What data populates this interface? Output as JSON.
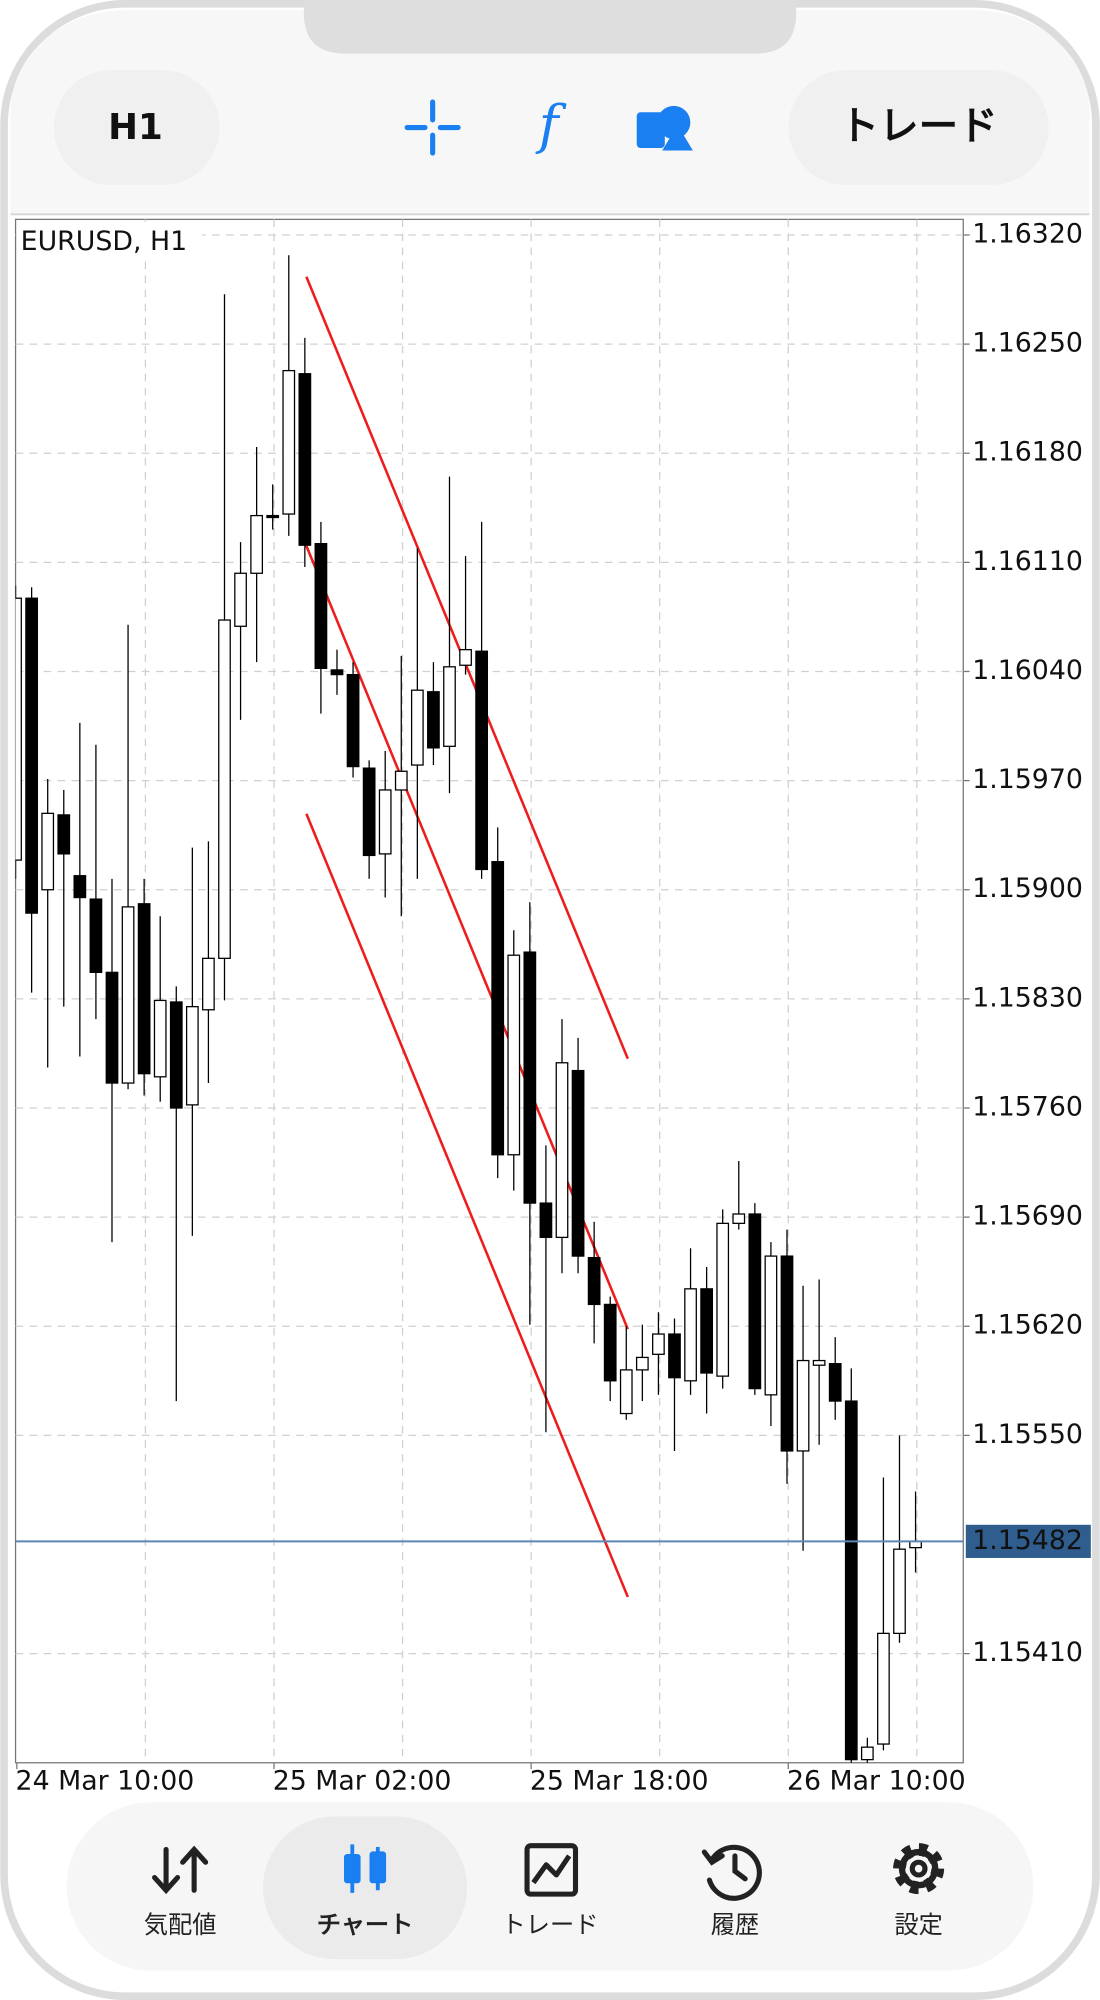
{
  "toolbar": {
    "timeframe": "H1",
    "trade": "トレード"
  },
  "chart_data": {
    "type": "candlestick",
    "title": "EURUSD, H1",
    "categories": [
      "24 Mar 10:00",
      null,
      null,
      null,
      null,
      null,
      null,
      null,
      null,
      null,
      null,
      null,
      null,
      null,
      null,
      null,
      "25 Mar 02:00",
      null,
      null,
      null,
      null,
      null,
      null,
      null,
      null,
      null,
      null,
      null,
      null,
      null,
      null,
      null,
      "25 Mar 18:00",
      null,
      null,
      null,
      null,
      null,
      null,
      null,
      null,
      null,
      null,
      null,
      null,
      null,
      null,
      null,
      "26 Mar 10:00",
      null,
      null,
      null,
      null,
      null,
      null,
      null,
      null
    ],
    "open": [
      1.15919,
      1.16087,
      1.159,
      1.15948,
      1.15909,
      1.15894,
      1.15847,
      1.15776,
      1.15891,
      1.1578,
      1.15828,
      1.15762,
      1.15823,
      1.15856,
      1.16069,
      1.16103,
      1.1614,
      1.16141,
      1.16231,
      1.16122,
      1.16041,
      1.16038,
      1.15978,
      1.15923,
      1.15964,
      1.1598,
      1.16027,
      1.15992,
      1.16044,
      1.16053,
      1.15918,
      1.1573,
      1.1586,
      1.15699,
      1.15677,
      1.15784,
      1.15664,
      1.15634,
      1.15564,
      1.15592,
      1.15602,
      1.15615,
      1.15585,
      1.15644,
      1.15588,
      1.15686,
      1.15692,
      1.15576,
      1.15665,
      1.1554,
      1.15595,
      1.15596,
      1.15572,
      1.15342,
      1.15352,
      1.15423,
      1.15478
    ],
    "high": [
      1.16095,
      1.16094,
      1.15971,
      1.15964,
      1.16007,
      1.15993,
      1.15907,
      1.1607,
      1.15907,
      1.15883,
      1.15838,
      1.15927,
      1.15931,
      1.16282,
      1.16123,
      1.16184,
      1.1616,
      1.16307,
      1.16254,
      1.16136,
      1.16054,
      1.16046,
      1.15983,
      1.15989,
      1.1605,
      1.16119,
      1.16046,
      1.16165,
      1.16114,
      1.16136,
      1.1594,
      1.15874,
      1.15892,
      1.15736,
      1.15817,
      1.15805,
      1.15687,
      1.15639,
      1.1562,
      1.15621,
      1.15629,
      1.15625,
      1.1567,
      1.15658,
      1.15695,
      1.15726,
      1.15699,
      1.15674,
      1.15682,
      1.15646,
      1.1565,
      1.15613,
      1.15593,
      1.15356,
      1.15523,
      1.1555,
      1.15514
    ],
    "low": [
      1.15907,
      1.15834,
      1.15786,
      1.15825,
      1.15793,
      1.15817,
      1.15674,
      1.15772,
      1.15768,
      1.15764,
      1.15572,
      1.15678,
      1.15776,
      1.15829,
      1.16009,
      1.16046,
      1.16131,
      1.16127,
      1.16107,
      1.16013,
      1.16025,
      1.15972,
      1.15907,
      1.15895,
      1.15883,
      1.15907,
      1.1598,
      1.15962,
      1.16038,
      1.15907,
      1.15715,
      1.15707,
      1.15621,
      1.15552,
      1.15654,
      1.15654,
      1.15609,
      1.15572,
      1.1556,
      1.15572,
      1.15576,
      1.1554,
      1.15576,
      1.15564,
      1.1558,
      1.15682,
      1.15576,
      1.15556,
      1.15519,
      1.15476,
      1.15544,
      1.1556,
      1.1534,
      1.1534,
      1.15348,
      1.15417,
      1.15462
    ],
    "close": [
      1.16087,
      1.15885,
      1.15949,
      1.15923,
      1.15895,
      1.15847,
      1.15776,
      1.15889,
      1.15782,
      1.15829,
      1.1576,
      1.15825,
      1.15856,
      1.16073,
      1.16103,
      1.1614,
      1.16139,
      1.16233,
      1.16121,
      1.16042,
      1.16038,
      1.15979,
      1.15922,
      1.15964,
      1.15976,
      1.16028,
      1.15991,
      1.16043,
      1.16054,
      1.15913,
      1.1573,
      1.15858,
      1.15699,
      1.15677,
      1.15789,
      1.15665,
      1.15634,
      1.15585,
      1.15592,
      1.156,
      1.15615,
      1.15587,
      1.15644,
      1.1559,
      1.15686,
      1.15692,
      1.1558,
      1.15665,
      1.1554,
      1.15598,
      1.15598,
      1.15572,
      1.15342,
      1.1535,
      1.15423,
      1.15477,
      1.15482
    ],
    "up_color": "#ffffff",
    "down_color": "#000000",
    "ylim": [
      1.1534,
      1.1633
    ],
    "yticks": [
      {
        "value": 1.1632,
        "label": "1.16320"
      },
      {
        "value": 1.1625,
        "label": "1.16250"
      },
      {
        "value": 1.1618,
        "label": "1.16180"
      },
      {
        "value": 1.1611,
        "label": "1.16110"
      },
      {
        "value": 1.1604,
        "label": "1.16040"
      },
      {
        "value": 1.1597,
        "label": "1.15970"
      },
      {
        "value": 1.159,
        "label": "1.15900"
      },
      {
        "value": 1.1583,
        "label": "1.15830"
      },
      {
        "value": 1.1576,
        "label": "1.15760"
      },
      {
        "value": 1.1569,
        "label": "1.15690"
      },
      {
        "value": 1.1562,
        "label": "1.15620"
      },
      {
        "value": 1.1555,
        "label": "1.15550"
      },
      {
        "value": 1.1541,
        "label": "1.15410"
      }
    ],
    "current_price": {
      "value": 1.15482,
      "label": "1.15482"
    },
    "grid": true
  },
  "nav": {
    "items": [
      "気配値",
      "チャート",
      "トレード",
      "履歴",
      "設定"
    ],
    "active": 1
  }
}
